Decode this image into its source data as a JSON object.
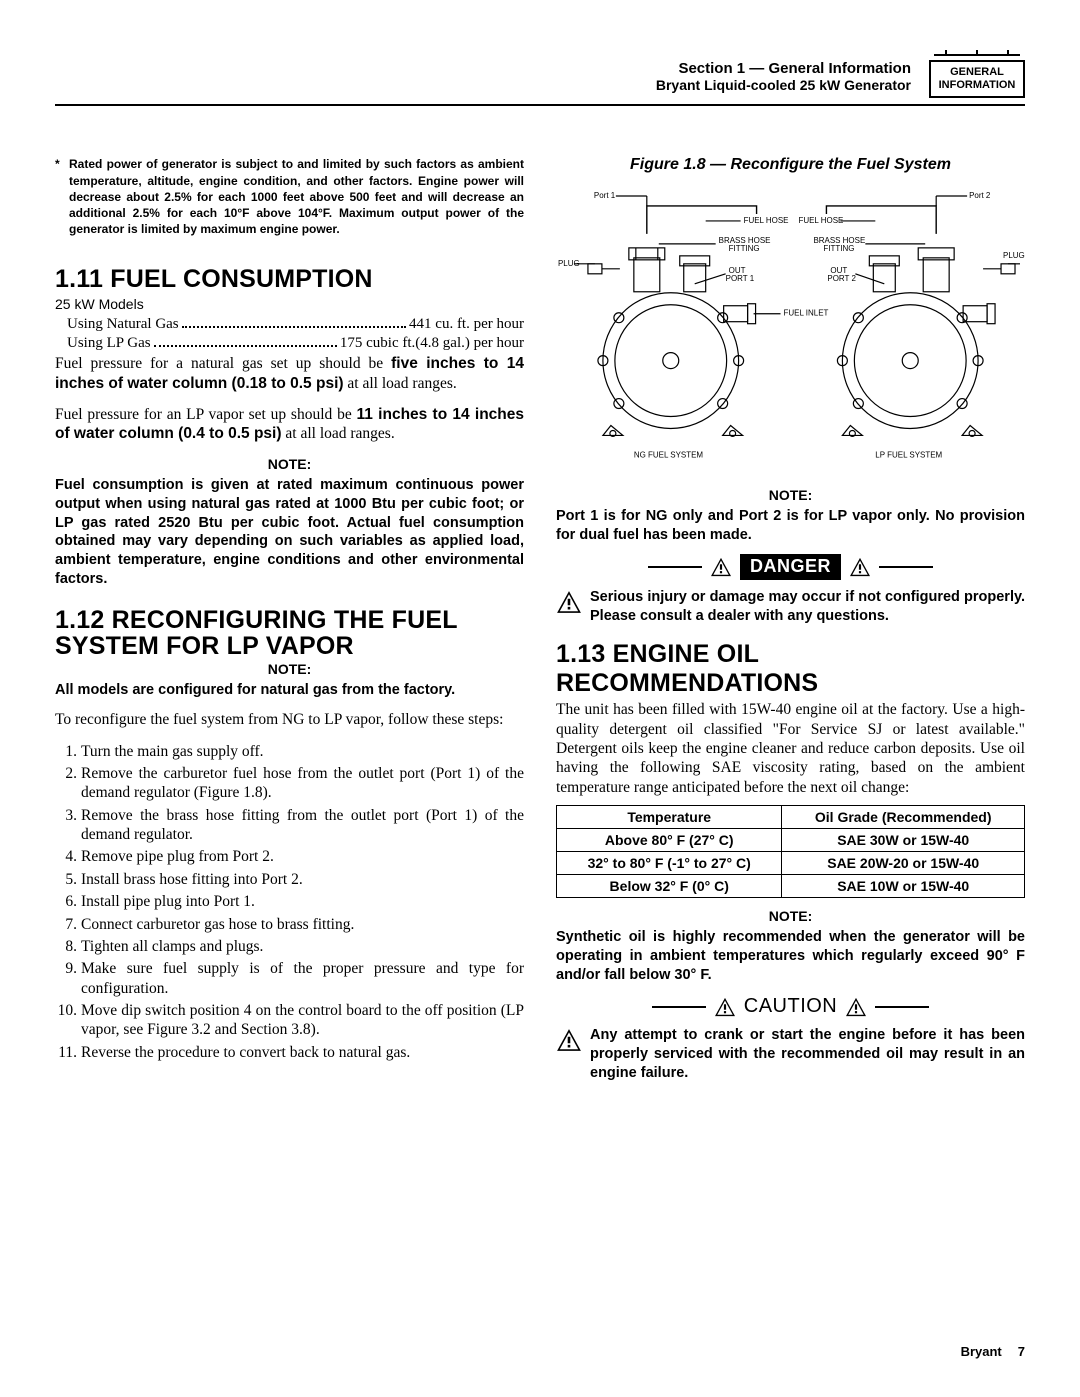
{
  "header": {
    "line1": "Section 1 — General Information",
    "line2": "Bryant Liquid-cooled 25 kW Generator",
    "tab_l1": "GENERAL",
    "tab_l2": "INFORMATION"
  },
  "rated_note": "Rated power of generator is subject to and limited by such factors as ambient temperature, altitude, engine condition, and other factors. Engine power will decrease about 2.5% for each 1000 feet above 500 feet and will decrease an additional 2.5% for each 10°F above 104°F. Maximum output power of the generator is limited by maximum engine power.",
  "s111": {
    "heading": "1.11 FUEL CONSUMPTION",
    "models": "25 kW Models",
    "ng_label": "Using Natural Gas",
    "ng_value": "441 cu. ft. per hour",
    "lp_label": "Using LP Gas",
    "lp_value": "175 cubic ft.(4.8 gal.) per hour",
    "para1_a": "Fuel pressure for a natural gas set up should be ",
    "para1_b": "five inches to 14 inches of water column (0.18 to 0.5 psi)",
    "para1_c": " at all load ranges.",
    "para2_a": "Fuel pressure for an LP vapor set up should be ",
    "para2_b": "11 inches to 14 inches of water column (0.4 to 0.5 psi)",
    "para2_c": " at all load ranges.",
    "note_hdr": "NOTE:",
    "note_body": "Fuel consumption is given at rated maximum continuous power output when using natural gas rated at 1000 Btu per cubic foot; or LP gas rated 2520 Btu per cubic foot. Actual fuel consumption obtained may vary depending on such variables as applied load, ambient temperature, engine conditions and other environmental factors."
  },
  "s112": {
    "heading": "1.12 RECONFIGURING THE FUEL SYSTEM FOR LP VAPOR",
    "note_hdr": "NOTE:",
    "note_body": "All models are configured for natural gas from the factory.",
    "intro": "To reconfigure the fuel system from NG to LP vapor, follow these steps:",
    "steps": [
      "Turn the main gas supply off.",
      "Remove the carburetor fuel hose from the outlet port (Port 1) of the demand regulator (Figure 1.8).",
      "Remove the brass hose fitting from the outlet port (Port 1) of the demand regulator.",
      "Remove pipe plug from Port 2.",
      "Install brass hose fitting into Port 2.",
      "Install pipe plug into Port 1.",
      "Connect carburetor gas hose to brass fitting.",
      "Tighten all clamps and plugs.",
      "Make sure fuel supply is of the proper pressure and type for configuration.",
      "Move dip switch position 4 on the control board to the off position (LP vapor, see Figure 3.2 and Section 3.8).",
      "Reverse the procedure to convert back to natural gas."
    ]
  },
  "fig": {
    "caption": "Figure 1.8 — Reconfigure the Fuel System",
    "labels": {
      "port1": "Port 1",
      "port2": "Port 2",
      "fuelhose": "FUEL HOSE",
      "brass": "BRASS HOSE\nFITTING",
      "plug": "PLUG",
      "out1": "OUT\nPORT 1",
      "out2": "OUT\nPORT 2",
      "inlet": "FUEL INLET",
      "ng": "NG FUEL SYSTEM",
      "lp": "LP FUEL SYSTEM"
    },
    "note_hdr": "NOTE:",
    "note_body": "Port 1 is for NG only and Port 2 is for LP vapor only. No provision for dual fuel has been made."
  },
  "danger": {
    "label": "DANGER",
    "msg": "Serious injury or damage may occur if not configured properly. Please consult a dealer with any questions."
  },
  "s113": {
    "heading": "1.13 ENGINE OIL RECOMMENDATIONS",
    "para": "The unit has been filled with 15W-40 engine oil at the factory. Use a high-quality detergent oil classified \"For Service SJ or latest available.\" Detergent oils keep the engine cleaner and reduce carbon deposits. Use oil having the following SAE viscosity rating, based on the ambient temperature range anticipated before the next oil change:",
    "table": {
      "headers": [
        "Temperature",
        "Oil Grade (Recommended)"
      ],
      "rows": [
        [
          "Above 80° F (27° C)",
          "SAE 30W or 15W-40"
        ],
        [
          "32° to 80° F (-1° to 27° C)",
          "SAE 20W-20 or 15W-40"
        ],
        [
          "Below 32° F (0° C)",
          "SAE 10W or 15W-40"
        ]
      ]
    },
    "note_hdr": "NOTE:",
    "note_body": "Synthetic oil is highly recommended when the generator will be operating in ambient temperatures which regularly exceed 90° F and/or fall below 30° F."
  },
  "caution": {
    "label": "CAUTION",
    "msg": "Any attempt to crank or start the engine before it has been properly serviced with the recommended oil may result in an engine failure."
  },
  "footer": {
    "brand": "Bryant",
    "page": "7"
  }
}
